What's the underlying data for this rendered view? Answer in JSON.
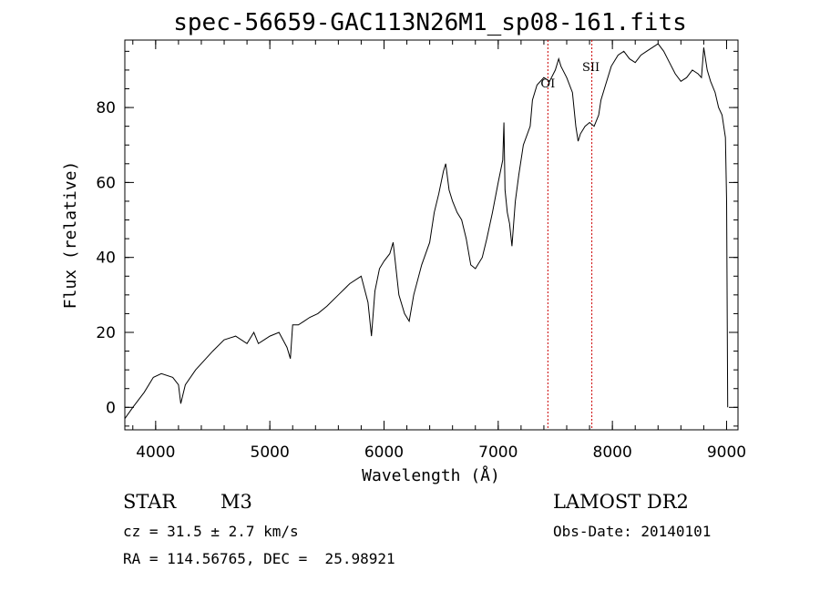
{
  "chart_data": {
    "type": "line",
    "title": "spec-56659-GAC113N26M1_sp08-161.fits",
    "xlabel": "Wavelength (Å)",
    "ylabel": "Flux (relative)",
    "xlim": [
      3730,
      9100
    ],
    "ylim": [
      -6,
      98
    ],
    "xticks": [
      "4000",
      "5000",
      "6000",
      "7000",
      "8000",
      "9000"
    ],
    "yticks": [
      "0",
      "20",
      "40",
      "60",
      "80"
    ],
    "grid": false,
    "series": [
      {
        "x": [
          3730,
          3800,
          3900,
          3980,
          4050,
          4150,
          4200,
          4220,
          4260,
          4350,
          4500,
          4600,
          4700,
          4800,
          4860,
          4900,
          4950,
          5000,
          5080,
          5150,
          5180,
          5200,
          5250,
          5300,
          5350,
          5420,
          5500,
          5600,
          5700,
          5800,
          5860,
          5890,
          5920,
          5960,
          6000,
          6050,
          6080,
          6130,
          6180,
          6220,
          6260,
          6330,
          6400,
          6440,
          6480,
          6520,
          6540,
          6570,
          6600,
          6640,
          6680,
          6720,
          6760,
          6800,
          6860,
          6900,
          6950,
          7000,
          7040,
          7050,
          7060,
          7080,
          7100,
          7120,
          7150,
          7180,
          7220,
          7280,
          7300,
          7340,
          7400,
          7450,
          7500,
          7530,
          7550,
          7600,
          7650,
          7680,
          7700,
          7720,
          7760,
          7800,
          7840,
          7880,
          7900,
          7940,
          7990,
          8050,
          8100,
          8150,
          8200,
          8250,
          8300,
          8350,
          8400,
          8450,
          8500,
          8550,
          8600,
          8650,
          8700,
          8750,
          8780,
          8800,
          8830,
          8860,
          8900,
          8930,
          8960,
          8990,
          9000,
          9010
        ],
        "y": [
          -3,
          0,
          4,
          8,
          9,
          8,
          6,
          1,
          6,
          10,
          15,
          18,
          19,
          17,
          20,
          17,
          18,
          19,
          20,
          16,
          13,
          22,
          22,
          23,
          24,
          25,
          27,
          30,
          33,
          35,
          28,
          19,
          31,
          37,
          39,
          41,
          44,
          30,
          25,
          23,
          30,
          38,
          44,
          52,
          57,
          63,
          65,
          58,
          55,
          52,
          50,
          45,
          38,
          37,
          40,
          45,
          52,
          60,
          66,
          76,
          58,
          52,
          49,
          43,
          55,
          62,
          70,
          75,
          82,
          86,
          88,
          87,
          90,
          93,
          91,
          88,
          84,
          75,
          71,
          73,
          75,
          76,
          75,
          78,
          82,
          86,
          91,
          94,
          95,
          93,
          92,
          94,
          95,
          96,
          97,
          95,
          92,
          89,
          87,
          88,
          90,
          89,
          88,
          96,
          90,
          87,
          84,
          80,
          78,
          72,
          55,
          0
        ]
      }
    ],
    "annotations": [
      {
        "label": "OI",
        "x": 7435
      },
      {
        "label": "SII",
        "x": 7820
      }
    ],
    "line_color": "#000000",
    "marker_color": "#cc0000"
  },
  "info": {
    "object_class": "STAR",
    "subclass": "M3",
    "survey": "LAMOST DR2",
    "cz": "cz = 31.5 ± 2.7 km/s",
    "obs_date": "Obs-Date: 20140101",
    "coords": "RA = 114.56765, DEC =  25.98921"
  }
}
